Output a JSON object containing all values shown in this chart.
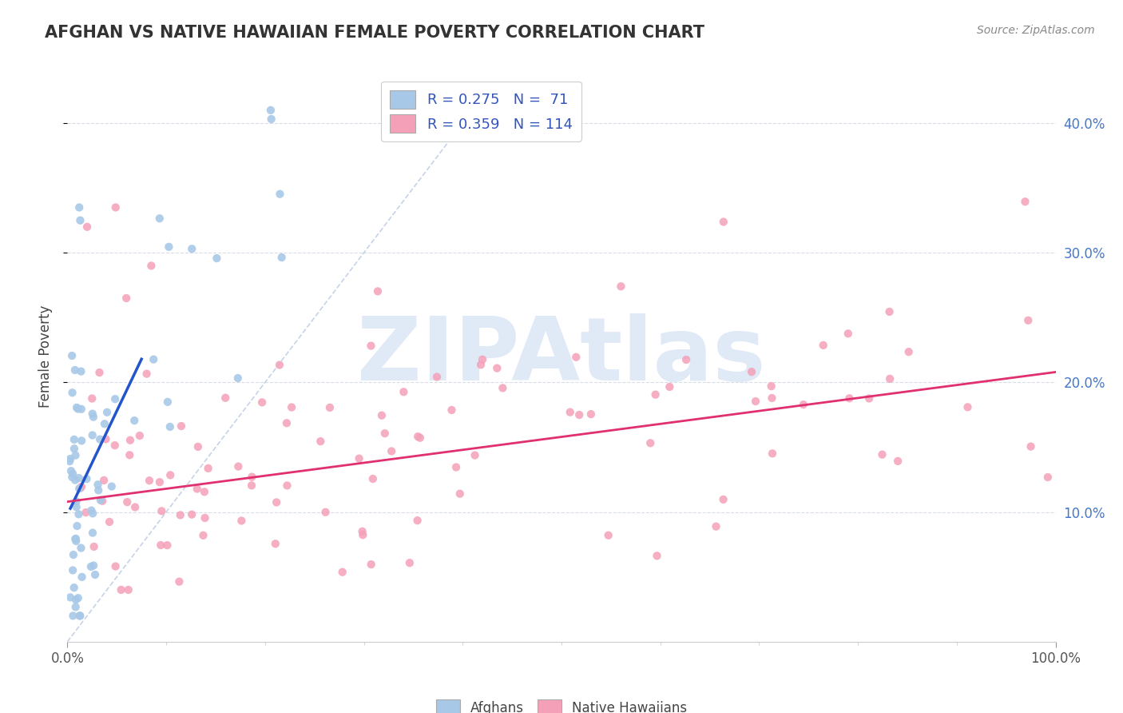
{
  "title": "AFGHAN VS NATIVE HAWAIIAN FEMALE POVERTY CORRELATION CHART",
  "source_text": "Source: ZipAtlas.com",
  "ylabel": "Female Poverty",
  "xlim": [
    0.0,
    1.0
  ],
  "ylim": [
    0.0,
    0.44
  ],
  "afghan_color": "#a8c8e8",
  "native_color": "#f4a0b8",
  "afghan_line_color": "#2255cc",
  "native_line_color": "#e03070",
  "ref_line_color": "#b8c8e0",
  "watermark": "ZIPAtlas",
  "watermark_color": "#c8d8f0",
  "background_color": "#ffffff",
  "grid_color": "#d8dce8",
  "title_color": "#333333",
  "source_color": "#888888",
  "ytick_color": "#4477cc",
  "xtick_color": "#555555",
  "legend_text_color": "#3355bb",
  "legend_label_color": "#444444"
}
